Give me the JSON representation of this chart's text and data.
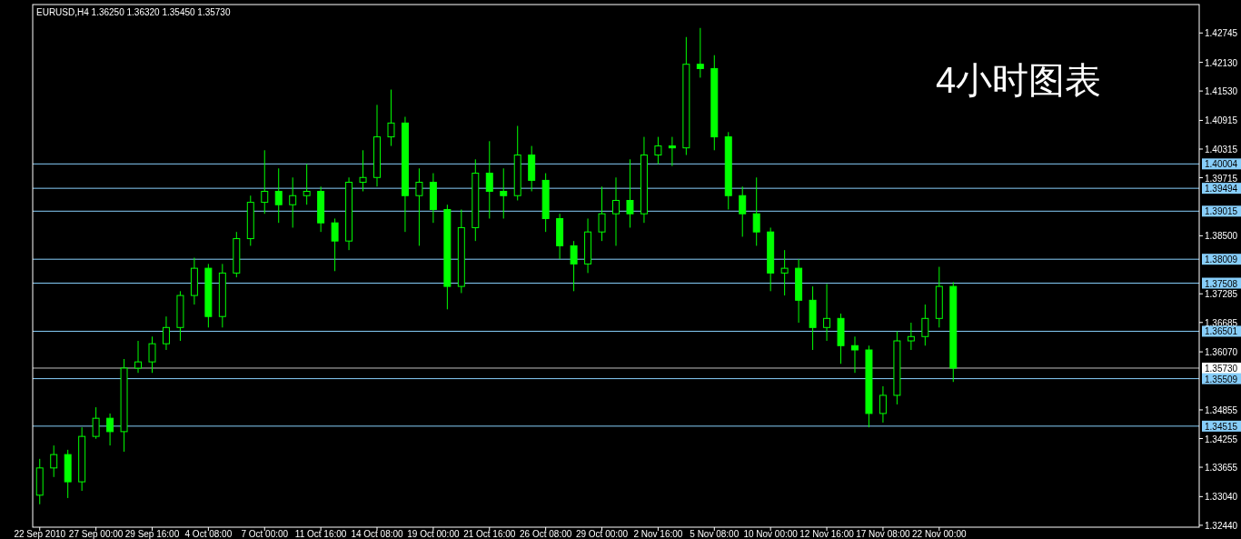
{
  "chart_data": {
    "type": "candlestick",
    "title": "EURUSD,H4  1.36250 1.36320 1.35450 1.35730",
    "annotations": [
      "4小时图表"
    ],
    "categories": [
      "22 Sep 2010",
      null,
      null,
      null,
      "27 Sep 00:00",
      null,
      null,
      null,
      "29 Sep 16:00",
      null,
      null,
      null,
      "4 Oct 08:00",
      null,
      null,
      null,
      "7 Oct 00:00",
      null,
      null,
      null,
      "11 Oct 16:00",
      null,
      null,
      null,
      "14 Oct 08:00",
      null,
      null,
      null,
      "19 Oct 00:00",
      null,
      null,
      null,
      "21 Oct 16:00",
      null,
      null,
      null,
      "26 Oct 08:00",
      null,
      null,
      null,
      "29 Oct 00:00",
      null,
      null,
      null,
      "2 Nov 16:00",
      null,
      null,
      null,
      "5 Nov 08:00",
      null,
      null,
      null,
      "10 Nov 00:00",
      null,
      null,
      null,
      "12 Nov 16:00",
      null,
      null,
      null,
      "17 Nov 08:00",
      null,
      null,
      null,
      "22 Nov 00:00",
      null,
      null,
      null,
      null,
      null,
      null,
      null,
      null,
      null,
      null,
      null,
      null,
      null,
      null,
      null,
      null,
      null,
      null
    ],
    "series": [
      {
        "color": "#00ff00",
        "ohlc": [
          [
            1.3307,
            1.3383,
            1.3288,
            1.3364
          ],
          [
            1.3364,
            1.3411,
            1.3345,
            1.3392
          ],
          [
            1.3392,
            1.3402,
            1.3301,
            1.3335
          ],
          [
            1.3335,
            1.3449,
            1.3316,
            1.343
          ],
          [
            1.343,
            1.3491,
            1.3425,
            1.3468
          ],
          [
            1.3468,
            1.3478,
            1.3411,
            1.344
          ],
          [
            1.344,
            1.3592,
            1.3398,
            1.3573
          ],
          [
            1.3573,
            1.363,
            1.3563,
            1.3586
          ],
          [
            1.3586,
            1.3639,
            1.3563,
            1.3624
          ],
          [
            1.3624,
            1.3681,
            1.3611,
            1.3658
          ],
          [
            1.3658,
            1.3734,
            1.363,
            1.3725
          ],
          [
            1.3725,
            1.3804,
            1.3706,
            1.3782
          ],
          [
            1.3782,
            1.3791,
            1.3658,
            1.3681
          ],
          [
            1.3681,
            1.3791,
            1.3658,
            1.3772
          ],
          [
            1.3772,
            1.3858,
            1.3763,
            1.3844
          ],
          [
            1.3844,
            1.3934,
            1.3829,
            1.392
          ],
          [
            1.392,
            1.4029,
            1.3896,
            1.3943
          ],
          [
            1.3943,
            1.3991,
            1.3877,
            1.3915
          ],
          [
            1.3915,
            1.3972,
            1.3867,
            1.3934
          ],
          [
            1.3934,
            1.4,
            1.3915,
            1.3943
          ],
          [
            1.3943,
            1.3953,
            1.3858,
            1.3877
          ],
          [
            1.3877,
            1.3886,
            1.3776,
            1.3839
          ],
          [
            1.3839,
            1.3972,
            1.382,
            1.3962
          ],
          [
            1.3962,
            1.4029,
            1.3943,
            1.3972
          ],
          [
            1.3972,
            1.4124,
            1.3953,
            1.4057
          ],
          [
            1.4057,
            1.4156,
            1.4038,
            1.4086
          ],
          [
            1.4086,
            1.4099,
            1.3858,
            1.3934
          ],
          [
            1.3934,
            1.3991,
            1.3829,
            1.3962
          ],
          [
            1.3962,
            1.3981,
            1.3877,
            1.3905
          ],
          [
            1.3905,
            1.3915,
            1.3696,
            1.3744
          ],
          [
            1.3744,
            1.3905,
            1.373,
            1.3867
          ],
          [
            1.3867,
            1.401,
            1.3839,
            1.3981
          ],
          [
            1.3981,
            1.4048,
            1.3886,
            1.3943
          ],
          [
            1.3943,
            1.3991,
            1.3886,
            1.3934
          ],
          [
            1.3934,
            1.408,
            1.3924,
            1.4019
          ],
          [
            1.4019,
            1.4038,
            1.3943,
            1.3966
          ],
          [
            1.3966,
            1.3981,
            1.3858,
            1.3886
          ],
          [
            1.3886,
            1.3896,
            1.3801,
            1.3829
          ],
          [
            1.3829,
            1.3839,
            1.3734,
            1.3791
          ],
          [
            1.3791,
            1.3886,
            1.3772,
            1.3858
          ],
          [
            1.3858,
            1.3953,
            1.3839,
            1.3896
          ],
          [
            1.3896,
            1.3972,
            1.3829,
            1.3924
          ],
          [
            1.3924,
            1.401,
            1.3867,
            1.3896
          ],
          [
            1.3896,
            1.4057,
            1.3877,
            1.4019
          ],
          [
            1.4019,
            1.4057,
            1.4,
            1.4038
          ],
          [
            1.4038,
            1.4057,
            1.3996,
            1.4034
          ],
          [
            1.4034,
            1.4266,
            1.4019,
            1.4209
          ],
          [
            1.4209,
            1.4285,
            1.4181,
            1.42
          ],
          [
            1.42,
            1.4228,
            1.4029,
            1.4057
          ],
          [
            1.4057,
            1.4067,
            1.3905,
            1.3934
          ],
          [
            1.3934,
            1.3953,
            1.3848,
            1.3896
          ],
          [
            1.3896,
            1.3972,
            1.3829,
            1.3858
          ],
          [
            1.3858,
            1.3867,
            1.3734,
            1.3772
          ],
          [
            1.3772,
            1.382,
            1.3725,
            1.3782
          ],
          [
            1.3782,
            1.3801,
            1.3668,
            1.3715
          ],
          [
            1.3715,
            1.3744,
            1.3611,
            1.3658
          ],
          [
            1.3658,
            1.3749,
            1.363,
            1.3677
          ],
          [
            1.3677,
            1.3687,
            1.3582,
            1.362
          ],
          [
            1.362,
            1.3639,
            1.3563,
            1.3611
          ],
          [
            1.3611,
            1.362,
            1.3449,
            1.3478
          ],
          [
            1.3478,
            1.3535,
            1.3459,
            1.3516
          ],
          [
            1.3516,
            1.365,
            1.3497,
            1.363
          ],
          [
            1.363,
            1.3668,
            1.3611,
            1.3639
          ],
          [
            1.3639,
            1.3706,
            1.362,
            1.3677
          ],
          [
            1.3677,
            1.3785,
            1.3658,
            1.3744
          ],
          [
            1.3744,
            1.3753,
            1.3544,
            1.3573
          ],
          null,
          null,
          null,
          null,
          null,
          null,
          null,
          null,
          null,
          null,
          null,
          null,
          null,
          null,
          null,
          null,
          null
        ]
      }
    ],
    "ylim": [
      1.324,
      1.4334
    ],
    "yticks": [
      1.42745,
      {
        "value": 1.4213,
        "label": "1.42130"
      },
      {
        "value": 1.4153,
        "label": "1.41530"
      },
      1.40915,
      1.40315,
      1.39715,
      {
        "value": 1.385,
        "label": "1.38500"
      },
      1.37285,
      1.36685,
      {
        "value": 1.3607,
        "label": "1.36070"
      },
      1.34855,
      1.34255,
      1.33655,
      {
        "value": 1.3304,
        "label": "1.33040"
      },
      {
        "value": 1.3244,
        "label": "1.32440"
      }
    ],
    "ref_lines": [
      {
        "axis": "y",
        "value": 1.40004,
        "label": "1.40004",
        "color": "#87cefa"
      },
      {
        "axis": "y",
        "value": 1.39494,
        "label": "1.39494",
        "color": "#87cefa"
      },
      {
        "axis": "y",
        "value": 1.39015,
        "label": "1.39015",
        "color": "#87cefa"
      },
      {
        "axis": "y",
        "value": 1.38009,
        "label": "1.38009",
        "color": "#87cefa"
      },
      {
        "axis": "y",
        "value": 1.37508,
        "label": "1.37508",
        "color": "#87cefa"
      },
      {
        "axis": "y",
        "value": 1.36501,
        "label": "1.36501",
        "color": "#87cefa"
      },
      {
        "axis": "y",
        "value": 1.3573,
        "label": "1.35730",
        "color": "#c0c0c0"
      },
      {
        "axis": "y",
        "value": 1.35509,
        "label": "1.35509",
        "color": "#87cefa"
      },
      {
        "axis": "y",
        "value": 1.34515,
        "label": "1.34515",
        "color": "#87cefa"
      }
    ]
  }
}
